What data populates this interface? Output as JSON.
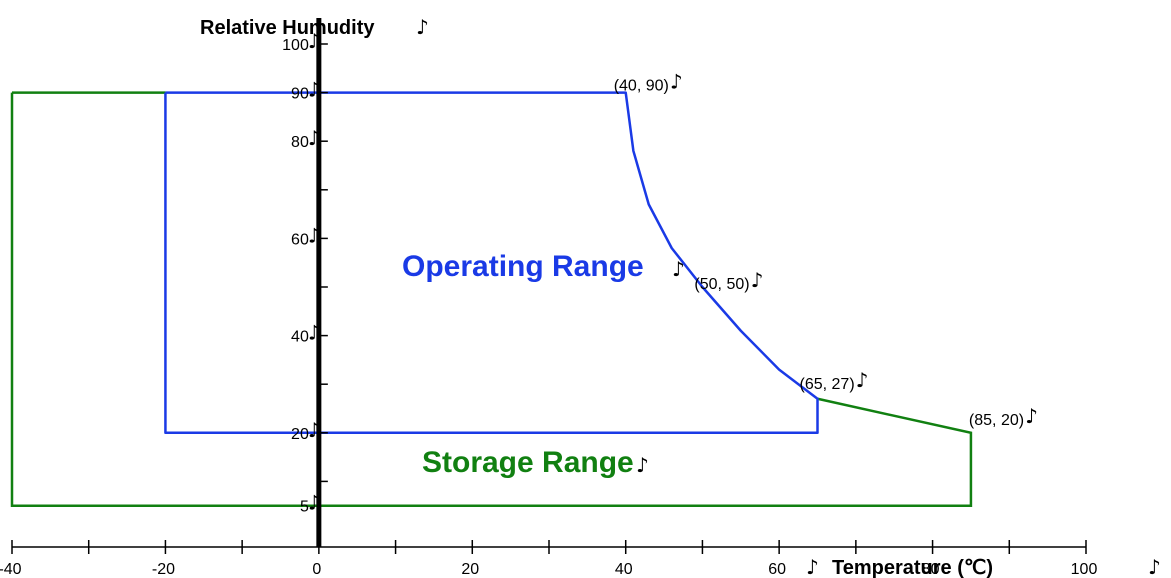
{
  "chart_data": {
    "type": "line",
    "xlabel": "Temperature (℃)",
    "ylabel": "Relative Humudity",
    "mark": "♪",
    "xlim": [
      -40,
      100
    ],
    "ylim": [
      0,
      100
    ],
    "x_ticks": [
      -40,
      -20,
      0,
      20,
      40,
      60,
      80,
      100
    ],
    "y_ticks": [
      100,
      90,
      80,
      60,
      40,
      20,
      5
    ],
    "colors": {
      "operating": "#1a3ae6",
      "storage": "#118011"
    },
    "series": [
      {
        "name": "Operating Range",
        "x": [
          -20,
          40,
          41,
          43,
          46,
          50,
          55,
          60,
          65,
          65,
          -20,
          -20
        ],
        "y": [
          90,
          90,
          78,
          67,
          58,
          50,
          41,
          33,
          27,
          20,
          20,
          90
        ]
      },
      {
        "name": "Storage Range",
        "x": [
          -40,
          -40,
          85,
          85,
          65
        ],
        "y": [
          90,
          5,
          5,
          20,
          27
        ]
      }
    ],
    "annotations": [
      {
        "text": "(40, 90)",
        "x": 40,
        "y": 90
      },
      {
        "text": "(50, 50)",
        "x": 50,
        "y": 50
      },
      {
        "text": "(65, 27)",
        "x": 65,
        "y": 27
      },
      {
        "text": "(85, 20)",
        "x": 85,
        "y": 20
      }
    ],
    "storage_top_from_x": -40,
    "storage_top_to_x": -20,
    "storage_top_y": 90
  }
}
